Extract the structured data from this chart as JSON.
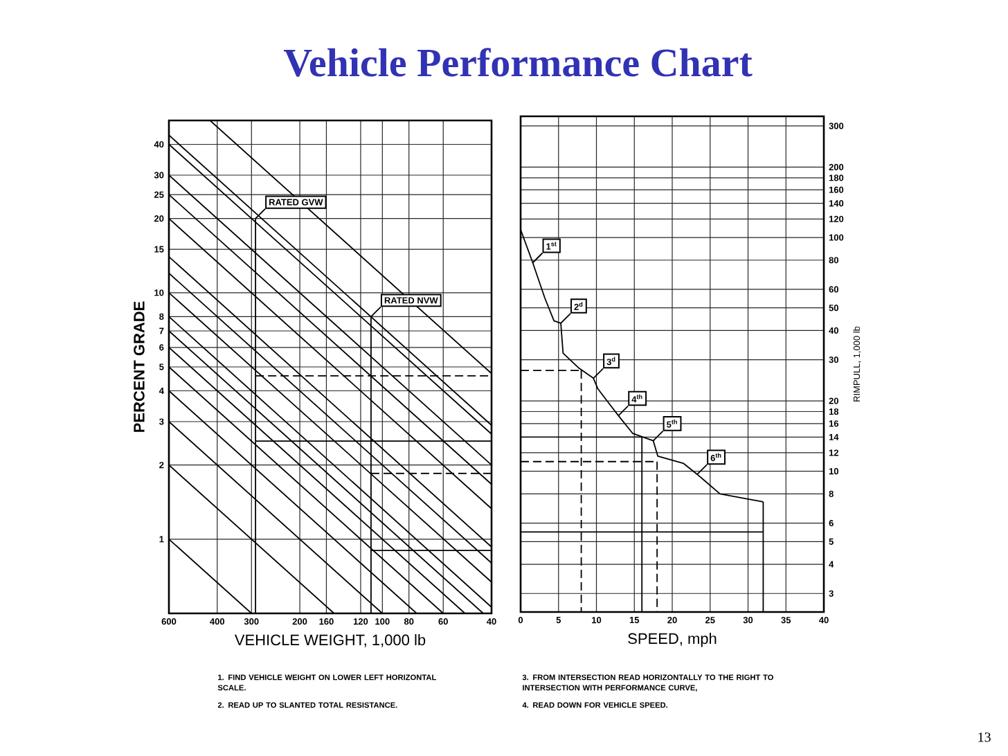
{
  "chart_data": [
    {
      "type": "line",
      "title": "Vehicle Performance Chart",
      "xlabel": "VEHICLE WEIGHT, 1,000 lb",
      "ylabel": "PERCENT GRADE",
      "log": "xy",
      "grid": true,
      "line_style": "solid",
      "xlim": [
        600,
        40
      ],
      "xticks": [
        600,
        400,
        300,
        200,
        160,
        120,
        100,
        80,
        60,
        40
      ],
      "ylim": [
        0.5,
        50
      ],
      "yticks": [
        1,
        2,
        3,
        4,
        5,
        6,
        7,
        8,
        10,
        15,
        20,
        25,
        30,
        40
      ],
      "series": [
        {
          "color": "#000000",
          "x": [
            425,
            40
          ],
          "values": [
            50,
            4.7
          ]
        },
        {
          "color": "#000000",
          "x": [
            600,
            40
          ],
          "values": [
            43.6,
            2.9
          ]
        },
        {
          "color": "#000000",
          "x": [
            600,
            40
          ],
          "values": [
            40,
            2.67
          ]
        },
        {
          "color": "#000000",
          "x": [
            600,
            40
          ],
          "values": [
            30,
            2
          ]
        },
        {
          "color": "#000000",
          "x": [
            600,
            40
          ],
          "values": [
            25,
            1.67
          ]
        },
        {
          "color": "#000000",
          "x": [
            600,
            40
          ],
          "values": [
            20,
            1.33
          ]
        },
        {
          "color": "#000000",
          "x": [
            600,
            40
          ],
          "values": [
            14,
            0.93
          ]
        },
        {
          "color": "#000000",
          "x": [
            600,
            40
          ],
          "values": [
            12,
            0.8
          ]
        },
        {
          "color": "#000000",
          "x": [
            600,
            40
          ],
          "values": [
            10,
            0.67
          ]
        },
        {
          "color": "#000000",
          "x": [
            600,
            40
          ],
          "values": [
            8,
            0.53
          ]
        },
        {
          "color": "#000000",
          "x": [
            600,
            42.9
          ],
          "values": [
            7,
            0.5
          ]
        },
        {
          "color": "#000000",
          "x": [
            600,
            50
          ],
          "values": [
            6,
            0.5
          ]
        },
        {
          "color": "#000000",
          "x": [
            600,
            60
          ],
          "values": [
            5,
            0.5
          ]
        },
        {
          "color": "#000000",
          "x": [
            600,
            75
          ],
          "values": [
            4,
            0.5
          ]
        },
        {
          "color": "#000000",
          "x": [
            600,
            100
          ],
          "values": [
            3,
            0.5
          ]
        },
        {
          "color": "#000000",
          "x": [
            600,
            150
          ],
          "values": [
            2,
            0.5
          ]
        },
        {
          "color": "#000000",
          "x": [
            600,
            300
          ],
          "values": [
            1,
            0.5
          ]
        },
        {
          "color": "#000000",
          "x": [
            290,
            290
          ],
          "values": [
            0.5,
            20
          ]
        },
        {
          "color": "#000000",
          "x": [
            290,
            40
          ],
          "values": [
            2.5,
            2.5
          ]
        },
        {
          "color": "#000000",
          "x": [
            290,
            40
          ],
          "values": [
            4.6,
            4.6
          ],
          "line_style": "dashed"
        },
        {
          "color": "#000000",
          "x": [
            110,
            110
          ],
          "values": [
            0.5,
            8
          ]
        },
        {
          "color": "#000000",
          "x": [
            110,
            40
          ],
          "values": [
            1.85,
            1.85
          ],
          "line_style": "dashed"
        },
        {
          "color": "#000000",
          "x": [
            110,
            40
          ],
          "values": [
            0.9,
            0.9
          ]
        }
      ],
      "annotations": [
        {
          "text": "RATED GVW",
          "x": 290,
          "y": 20
        },
        {
          "text": "RATED NVW",
          "x": 110,
          "y": 8
        },
        "1. FIND VEHICLE WEIGHT ON LOWER LEFT HORIZONTAL SCALE.",
        "2. READ UP TO SLANTED TOTAL RESISTANCE."
      ]
    },
    {
      "type": "line",
      "xlabel": "SPEED, mph",
      "ylabel": "RIMPULL, 1,000 lb",
      "log": "y",
      "grid": true,
      "line_style": "solid",
      "xlim": [
        0,
        40
      ],
      "xticks": [
        0,
        5,
        10,
        15,
        20,
        25,
        30,
        35,
        40
      ],
      "ylim": [
        2.5,
        330
      ],
      "yticks": [
        3,
        4,
        5,
        6,
        8,
        10,
        12,
        14,
        16,
        18,
        20,
        30,
        40,
        50,
        60,
        80,
        100,
        120,
        140,
        160,
        180,
        200,
        300
      ],
      "series": [
        {
          "color": "#000000",
          "x": [
            0,
            1.6,
            3.2,
            4.4,
            5.3,
            5.6,
            7.7,
            9.6,
            10.2,
            11.4,
            12.9,
            14.8,
            17.5,
            18.1,
            21.5,
            23.3,
            26.3,
            30,
            32
          ],
          "values": [
            108,
            78,
            55,
            44,
            43,
            32,
            27.6,
            25,
            22.5,
            20,
            17.3,
            14.5,
            13.5,
            11.6,
            10.8,
            9.7,
            8,
            7.6,
            7.4
          ]
        },
        {
          "color": "#000000",
          "x": [
            0,
            16
          ],
          "values": [
            14,
            14
          ]
        },
        {
          "color": "#000000",
          "x": [
            16,
            16
          ],
          "values": [
            14,
            2.5
          ]
        },
        {
          "color": "#000000",
          "x": [
            0,
            8
          ],
          "values": [
            27,
            27
          ],
          "line_style": "dashed"
        },
        {
          "color": "#000000",
          "x": [
            8,
            8
          ],
          "values": [
            27,
            2.5
          ],
          "line_style": "dashed"
        },
        {
          "color": "#000000",
          "x": [
            0,
            18
          ],
          "values": [
            11,
            11
          ],
          "line_style": "dashed"
        },
        {
          "color": "#000000",
          "x": [
            18,
            18
          ],
          "values": [
            11,
            2.5
          ],
          "line_style": "dashed"
        },
        {
          "color": "#000000",
          "x": [
            0,
            32
          ],
          "values": [
            5.5,
            5.5
          ]
        },
        {
          "color": "#000000",
          "x": [
            32,
            32
          ],
          "values": [
            7.4,
            2.5
          ]
        }
      ],
      "annotations": [
        {
          "text": "1$^{st}$",
          "x": 1.6,
          "y": 78
        },
        {
          "text": "2$^{d}$",
          "x": 5.3,
          "y": 43
        },
        {
          "text": "3$^{d}$",
          "x": 9.6,
          "y": 25
        },
        {
          "text": "4$^{th}$",
          "x": 12.9,
          "y": 17.3
        },
        {
          "text": "5$^{th}$",
          "x": 17.5,
          "y": 13.5
        },
        {
          "text": "6$^{th}$",
          "x": 23.3,
          "y": 9.7
        },
        "3. FROM INTERSECTION READ HORIZONTALLY TO THE RIGHT TO INTERSECTION WITH PERFORMANCE CURVE,",
        "4. READ DOWN FOR VEHICLE SPEED.",
        "13"
      ]
    }
  ]
}
